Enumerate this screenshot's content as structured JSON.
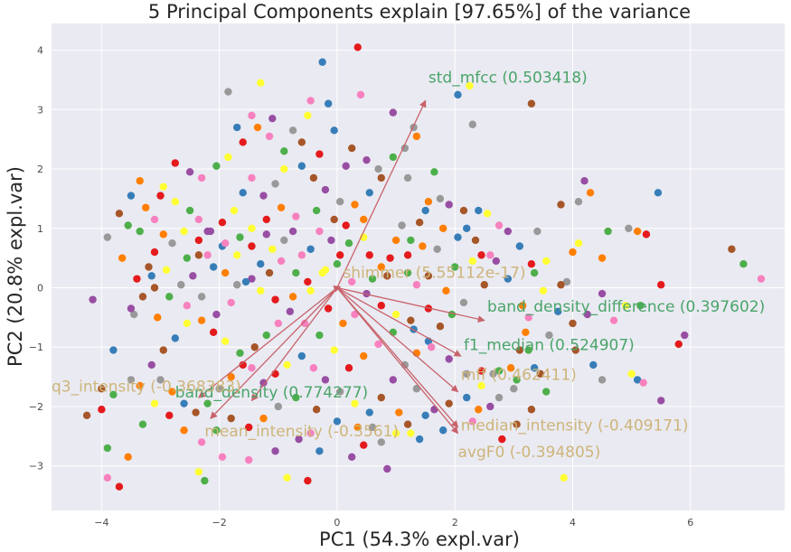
{
  "chart_data": {
    "type": "scatter",
    "title": "5 Principal Components explain [97.65%] of the variance",
    "xlabel": "PC1 (54.3% expl.var)",
    "ylabel": "PC2 (20.8% expl.var)",
    "xlim": [
      -4.85,
      7.6
    ],
    "ylim": [
      -3.75,
      4.45
    ],
    "xticks": [
      -4,
      -2,
      0,
      2,
      4,
      6
    ],
    "yticks": [
      -3,
      -2,
      -1,
      0,
      1,
      2,
      3,
      4
    ],
    "grid": true,
    "background_color": "#eaeaf2",
    "palette": [
      "#e41a1c",
      "#377eb8",
      "#4daf4a",
      "#984ea3",
      "#ff7f00",
      "#ffff33",
      "#a65628",
      "#f781bf",
      "#999999"
    ],
    "loadings": [
      {
        "label": "std_mfcc (0.503418)",
        "x": 1.5,
        "y": 3.15,
        "label_color": "#4aa56a"
      },
      {
        "label": "shimmer (5.55112e-17)",
        "x": 0.05,
        "y": 0.02,
        "label_color": "#cdb57a"
      },
      {
        "label": "band_density_difference (0.397602)",
        "x": 2.5,
        "y": -0.55,
        "label_color": "#4aa56a"
      },
      {
        "label": "f1_median (0.524907)",
        "x": 2.1,
        "y": -1.15,
        "label_color": "#4aa56a"
      },
      {
        "label": "mff (0.462411)",
        "x": 2.05,
        "y": -1.75,
        "label_color": "#cdb57a"
      },
      {
        "label": "band_density (0.774277)",
        "x": -1.45,
        "y": -1.9,
        "label_color": "#4aa56a"
      },
      {
        "label": "median_intensity (-0.409171)",
        "x": 2.05,
        "y": -2.35,
        "label_color": "#cdb57a"
      },
      {
        "label": "avgF0 (-0.394805)",
        "x": 2.05,
        "y": -2.45,
        "label_color": "#cdb57a"
      },
      {
        "label": "q3_intensity (-0.368383)",
        "x": -2.35,
        "y": -1.85,
        "label_color": "#cdb57a"
      },
      {
        "label": "mean_intensity (-0.3561)",
        "x": -2.15,
        "y": -2.2,
        "label_color": "#cdb57a"
      }
    ],
    "label_offsets": [
      {
        "x": 0.05,
        "y": 0.3
      },
      {
        "x": 0.05,
        "y": 0.15
      },
      {
        "x": 0.05,
        "y": 0.15
      },
      {
        "x": 0.05,
        "y": 0.1
      },
      {
        "x": 0.05,
        "y": 0.2
      },
      {
        "x": -1.3,
        "y": 0.05
      },
      {
        "x": 0.05,
        "y": -0.05
      },
      {
        "x": 0.0,
        "y": -0.4
      },
      {
        "x": -2.5,
        "y": 0.1
      },
      {
        "x": -0.1,
        "y": -0.3
      }
    ],
    "points": [
      [
        0.35,
        4.05
      ],
      [
        -1.3,
        3.45
      ],
      [
        -0.25,
        3.8
      ],
      [
        0.4,
        3.25
      ],
      [
        0.95,
        2.95
      ],
      [
        1.3,
        2.7
      ],
      [
        2.25,
        3.4
      ],
      [
        2.05,
        3.25
      ],
      [
        3.3,
        3.1
      ],
      [
        4.2,
        1.8
      ],
      [
        4.1,
        1.45
      ],
      [
        4.3,
        1.6
      ],
      [
        5.45,
        1.6
      ],
      [
        3.8,
        1.4
      ],
      [
        4.6,
        0.95
      ],
      [
        4.95,
        1.0
      ],
      [
        5.1,
        0.95
      ],
      [
        5.25,
        0.9
      ],
      [
        6.7,
        0.65
      ],
      [
        6.9,
        0.4
      ],
      [
        7.2,
        0.15
      ],
      [
        4.5,
        0.5
      ],
      [
        5.5,
        0.05
      ],
      [
        4.9,
        -0.3
      ],
      [
        5.15,
        -0.3
      ],
      [
        4.7,
        -0.55
      ],
      [
        5.9,
        -0.8
      ],
      [
        5.8,
        -0.95
      ],
      [
        5.0,
        -1.45
      ],
      [
        5.1,
        -1.55
      ],
      [
        5.2,
        -1.6
      ],
      [
        5.5,
        -1.9
      ],
      [
        4.5,
        -1.55
      ],
      [
        3.85,
        -3.2
      ],
      [
        3.35,
        -1.35
      ],
      [
        3.45,
        -1.45
      ],
      [
        -4.15,
        -0.2
      ],
      [
        -3.45,
        -0.45
      ],
      [
        -3.05,
        -0.5
      ],
      [
        -3.8,
        -1.05
      ],
      [
        -4.0,
        -1.7
      ],
      [
        -3.8,
        -1.8
      ],
      [
        -3.5,
        -1.55
      ],
      [
        -3.35,
        -1.65
      ],
      [
        -4.0,
        -2.05
      ],
      [
        -4.25,
        -2.15
      ],
      [
        -3.9,
        -2.7
      ],
      [
        -3.9,
        -3.2
      ],
      [
        -3.55,
        -2.85
      ],
      [
        -3.7,
        -3.35
      ],
      [
        -2.35,
        -3.1
      ],
      [
        -2.25,
        -3.25
      ],
      [
        -1.5,
        -2.9
      ],
      [
        -1.05,
        -2.75
      ],
      [
        -0.5,
        -3.25
      ],
      [
        -0.85,
        -3.2
      ],
      [
        -0.3,
        -2.75
      ],
      [
        -0.45,
        -2.45
      ],
      [
        0.25,
        -2.85
      ],
      [
        0.75,
        -2.6
      ],
      [
        1.25,
        -2.45
      ],
      [
        1.4,
        -2.55
      ],
      [
        1.2,
        -2.3
      ],
      [
        0.85,
        -3.05
      ],
      [
        0.6,
        -2.35
      ],
      [
        1.05,
        -2.1
      ],
      [
        1.5,
        -2.15
      ],
      [
        3.05,
        -2.3
      ],
      [
        2.75,
        -1.4
      ],
      [
        2.65,
        -1.45
      ],
      [
        2.95,
        -1.35
      ],
      [
        2.45,
        -1.4
      ],
      [
        3.1,
        -1.05
      ],
      [
        3.25,
        -1.05
      ],
      [
        3.25,
        -0.5
      ],
      [
        3.15,
        -0.3
      ],
      [
        3.3,
        0.4
      ],
      [
        3.55,
        0.45
      ],
      [
        3.35,
        0.25
      ],
      [
        2.6,
        0.55
      ],
      [
        2.7,
        0.45
      ],
      [
        2.45,
        0.55
      ],
      [
        2.3,
        0.45
      ],
      [
        2.05,
        0.85
      ],
      [
        2.75,
        1.05
      ],
      [
        2.9,
        0.95
      ],
      [
        3.4,
        0.95
      ],
      [
        2.55,
        1.25
      ],
      [
        2.4,
        1.3
      ],
      [
        2.15,
        1.3
      ],
      [
        1.9,
        1.4
      ],
      [
        1.75,
        1.5
      ],
      [
        1.55,
        1.45
      ],
      [
        1.5,
        1.3
      ],
      [
        1.4,
        1.1
      ],
      [
        1.25,
        0.8
      ],
      [
        1.1,
        1.05
      ],
      [
        1.0,
        0.8
      ],
      [
        0.9,
        0.5
      ],
      [
        1.55,
        0.2
      ],
      [
        1.2,
        0.25
      ],
      [
        1.35,
        0.05
      ],
      [
        0.75,
        0.35
      ],
      [
        0.55,
        0.55
      ],
      [
        0.45,
        0.85
      ],
      [
        0.2,
        0.75
      ],
      [
        -0.3,
        0.95
      ],
      [
        -0.1,
        0.8
      ],
      [
        0.05,
        0.55
      ],
      [
        -0.2,
        0.3
      ],
      [
        -0.45,
        0.65
      ],
      [
        -0.6,
        0.55
      ],
      [
        -0.75,
        0.95
      ],
      [
        -0.9,
        0.8
      ],
      [
        -1.1,
        0.65
      ],
      [
        -1.3,
        0.4
      ],
      [
        -1.15,
        0.25
      ],
      [
        -1.45,
        0.15
      ],
      [
        -1.7,
        0.05
      ],
      [
        -1.9,
        0.25
      ],
      [
        -2.1,
        0.35
      ],
      [
        -2.35,
        0.55
      ],
      [
        -2.55,
        0.5
      ],
      [
        -2.8,
        0.75
      ],
      [
        -2.95,
        0.9
      ],
      [
        -3.1,
        0.6
      ],
      [
        -3.2,
        0.35
      ],
      [
        -3.35,
        0.95
      ],
      [
        -3.1,
        1.15
      ],
      [
        -3.25,
        1.35
      ],
      [
        -3.0,
        1.55
      ],
      [
        -2.75,
        1.45
      ],
      [
        -2.5,
        1.3
      ],
      [
        -2.35,
        1.15
      ],
      [
        -2.2,
        0.95
      ],
      [
        -1.95,
        1.1
      ],
      [
        -1.75,
        1.3
      ],
      [
        -1.6,
        1.6
      ],
      [
        -1.45,
        1.85
      ],
      [
        -1.25,
        1.55
      ],
      [
        -1.05,
        1.75
      ],
      [
        -0.9,
        2.0
      ],
      [
        -0.6,
        2.05
      ],
      [
        -0.4,
        1.85
      ],
      [
        -0.2,
        1.65
      ],
      [
        0.05,
        1.45
      ],
      [
        0.3,
        1.4
      ],
      [
        0.55,
        1.6
      ],
      [
        0.75,
        1.85
      ],
      [
        0.95,
        2.2
      ],
      [
        1.15,
        2.35
      ],
      [
        1.35,
        2.55
      ],
      [
        -0.3,
        2.25
      ],
      [
        -0.6,
        2.45
      ],
      [
        -0.9,
        2.3
      ],
      [
        -1.15,
        2.55
      ],
      [
        -1.35,
        2.7
      ],
      [
        -1.6,
        2.45
      ],
      [
        -1.85,
        2.2
      ],
      [
        -2.05,
        2.05
      ],
      [
        -2.3,
        1.85
      ],
      [
        -2.5,
        1.95
      ],
      [
        -2.75,
        2.1
      ],
      [
        -2.95,
        1.7
      ],
      [
        -1.7,
        2.7
      ],
      [
        -1.45,
        2.9
      ],
      [
        -1.1,
        2.85
      ],
      [
        -0.75,
        2.65
      ],
      [
        -0.5,
        2.9
      ],
      [
        -0.05,
        2.65
      ],
      [
        0.25,
        2.35
      ],
      [
        0.5,
        2.15
      ],
      [
        0.7,
        2.0
      ],
      [
        -3.35,
        1.8
      ],
      [
        -3.5,
        1.55
      ],
      [
        -3.7,
        1.25
      ],
      [
        -3.55,
        1.05
      ],
      [
        -3.9,
        0.85
      ],
      [
        -3.65,
        0.5
      ],
      [
        -3.4,
        0.15
      ],
      [
        -3.1,
        0.0
      ],
      [
        -2.85,
        -0.15
      ],
      [
        -2.55,
        -0.3
      ],
      [
        -2.3,
        -0.55
      ],
      [
        -2.1,
        -0.75
      ],
      [
        -1.9,
        -0.9
      ],
      [
        -1.65,
        -1.1
      ],
      [
        -1.45,
        -1.35
      ],
      [
        -1.25,
        -1.6
      ],
      [
        -1.05,
        -1.45
      ],
      [
        -0.85,
        -1.3
      ],
      [
        -0.6,
        -1.15
      ],
      [
        -0.4,
        -1.35
      ],
      [
        -0.2,
        -1.55
      ],
      [
        0.05,
        -1.75
      ],
      [
        0.3,
        -1.95
      ],
      [
        0.55,
        -2.1
      ],
      [
        0.75,
        -1.85
      ],
      [
        0.95,
        -1.55
      ],
      [
        1.15,
        -1.3
      ],
      [
        1.35,
        -1.1
      ],
      [
        1.55,
        -0.9
      ],
      [
        1.75,
        -0.65
      ],
      [
        1.95,
        -0.45
      ],
      [
        2.15,
        -0.25
      ],
      [
        1.85,
        -0.05
      ],
      [
        1.55,
        -0.35
      ],
      [
        1.25,
        -0.55
      ],
      [
        0.95,
        -0.75
      ],
      [
        0.7,
        -0.95
      ],
      [
        0.45,
        -1.15
      ],
      [
        0.2,
        -1.35
      ],
      [
        -0.05,
        -1.05
      ],
      [
        -0.3,
        -0.8
      ],
      [
        -0.55,
        -0.6
      ],
      [
        -0.8,
        -0.4
      ],
      [
        -1.05,
        -0.2
      ],
      [
        -1.3,
        -0.05
      ],
      [
        -1.55,
        0.1
      ],
      [
        -1.8,
        -0.25
      ],
      [
        -2.05,
        -0.45
      ],
      [
        -2.3,
        -0.15
      ],
      [
        -2.55,
        -0.6
      ],
      [
        -2.75,
        -0.85
      ],
      [
        -2.95,
        -1.05
      ],
      [
        -3.15,
        -1.3
      ],
      [
        -3.0,
        -1.55
      ],
      [
        -2.8,
        -1.75
      ],
      [
        -2.6,
        -1.95
      ],
      [
        -2.4,
        -2.1
      ],
      [
        -2.2,
        -1.95
      ],
      [
        -2.0,
        -1.7
      ],
      [
        -1.8,
        -1.5
      ],
      [
        -1.6,
        -1.3
      ],
      [
        -1.4,
        -1.0
      ],
      [
        -1.2,
        -0.8
      ],
      [
        -1.0,
        -0.6
      ],
      [
        -0.75,
        -0.15
      ],
      [
        -0.5,
        0.1
      ],
      [
        -0.25,
        0.25
      ],
      [
        0.0,
        0.4
      ],
      [
        0.25,
        0.1
      ],
      [
        0.5,
        -0.1
      ],
      [
        0.75,
        -0.3
      ],
      [
        1.0,
        -0.45
      ],
      [
        1.3,
        -0.7
      ],
      [
        1.6,
        -1.0
      ],
      [
        1.9,
        -1.2
      ],
      [
        2.2,
        -1.45
      ],
      [
        2.45,
        -1.65
      ],
      [
        2.2,
        -1.85
      ],
      [
        1.9,
        -1.95
      ],
      [
        1.65,
        -2.05
      ],
      [
        1.35,
        -1.7
      ],
      [
        0.35,
        -2.35
      ],
      [
        0.0,
        -2.25
      ],
      [
        -0.35,
        -2.05
      ],
      [
        -0.7,
        -1.85
      ],
      [
        -1.0,
        -2.0
      ],
      [
        -1.25,
        -2.2
      ],
      [
        -1.5,
        -2.35
      ],
      [
        -1.8,
        -2.2
      ],
      [
        -2.05,
        -2.4
      ],
      [
        -2.3,
        -2.6
      ],
      [
        -2.6,
        -2.4
      ],
      [
        -2.85,
        -2.15
      ],
      [
        -3.1,
        -1.95
      ],
      [
        -3.3,
        -2.3
      ],
      [
        -1.95,
        -2.85
      ],
      [
        -0.65,
        -2.55
      ],
      [
        0.45,
        -2.65
      ],
      [
        1.0,
        -2.45
      ],
      [
        1.8,
        -2.4
      ],
      [
        2.3,
        -2.25
      ],
      [
        2.6,
        -2.0
      ],
      [
        3.0,
        -1.7
      ],
      [
        3.5,
        -0.05
      ],
      [
        3.75,
        -0.4
      ],
      [
        4.0,
        -0.6
      ],
      [
        4.25,
        -0.45
      ],
      [
        3.9,
        0.1
      ],
      [
        4.0,
        0.6
      ],
      [
        2.9,
        0.15
      ],
      [
        2.5,
        0.05
      ],
      [
        2.0,
        0.35
      ],
      [
        1.7,
        0.65
      ],
      [
        1.45,
        0.7
      ],
      [
        1.2,
        0.55
      ],
      [
        0.85,
        0.2
      ],
      [
        0.6,
        0.15
      ],
      [
        0.3,
        -0.45
      ],
      [
        0.1,
        -0.6
      ],
      [
        -0.15,
        -0.35
      ],
      [
        -0.45,
        -0.05
      ],
      [
        -0.7,
        0.25
      ],
      [
        -0.95,
        0.45
      ],
      [
        -1.2,
        0.9
      ],
      [
        -1.45,
        0.7
      ],
      [
        -1.7,
        0.55
      ],
      [
        -1.95,
        0.7
      ],
      [
        -2.2,
        0.55
      ],
      [
        -2.45,
        0.2
      ],
      [
        -2.65,
        0.05
      ],
      [
        -2.9,
        0.3
      ],
      [
        -3.15,
        0.2
      ],
      [
        -3.3,
        -0.15
      ],
      [
        -3.5,
        -0.35
      ],
      [
        2.3,
        2.75
      ],
      [
        1.8,
        1.0
      ],
      [
        2.2,
        1.0
      ],
      [
        2.35,
        0.8
      ],
      [
        1.65,
        1.95
      ],
      [
        1.2,
        1.85
      ],
      [
        0.45,
        1.15
      ],
      [
        0.15,
        1.05
      ],
      [
        -0.05,
        1.15
      ],
      [
        -0.35,
        1.3
      ],
      [
        -0.7,
        1.2
      ],
      [
        -0.95,
        1.35
      ],
      [
        -1.2,
        1.15
      ],
      [
        -1.45,
        1.0
      ],
      [
        -1.65,
        0.85
      ],
      [
        -1.9,
        0.75
      ],
      [
        -2.15,
        0.95
      ],
      [
        -2.35,
        0.8
      ],
      [
        -2.6,
        0.95
      ],
      [
        -0.15,
        3.1
      ],
      [
        -0.45,
        3.15
      ],
      [
        0.15,
        2.05
      ],
      [
        -1.85,
        3.3
      ],
      [
        4.1,
        0.75
      ],
      [
        3.1,
        0.7
      ],
      [
        3.8,
        0.05
      ],
      [
        4.5,
        -0.1
      ],
      [
        3.6,
        -0.8
      ],
      [
        3.2,
        -0.75
      ],
      [
        4.35,
        -1.3
      ],
      [
        4.05,
        -1.05
      ],
      [
        3.05,
        -1.55
      ],
      [
        2.75,
        -1.85
      ],
      [
        2.4,
        -2.05
      ],
      [
        2.8,
        -2.55
      ],
      [
        3.3,
        -2.05
      ],
      [
        3.55,
        -1.75
      ]
    ]
  }
}
